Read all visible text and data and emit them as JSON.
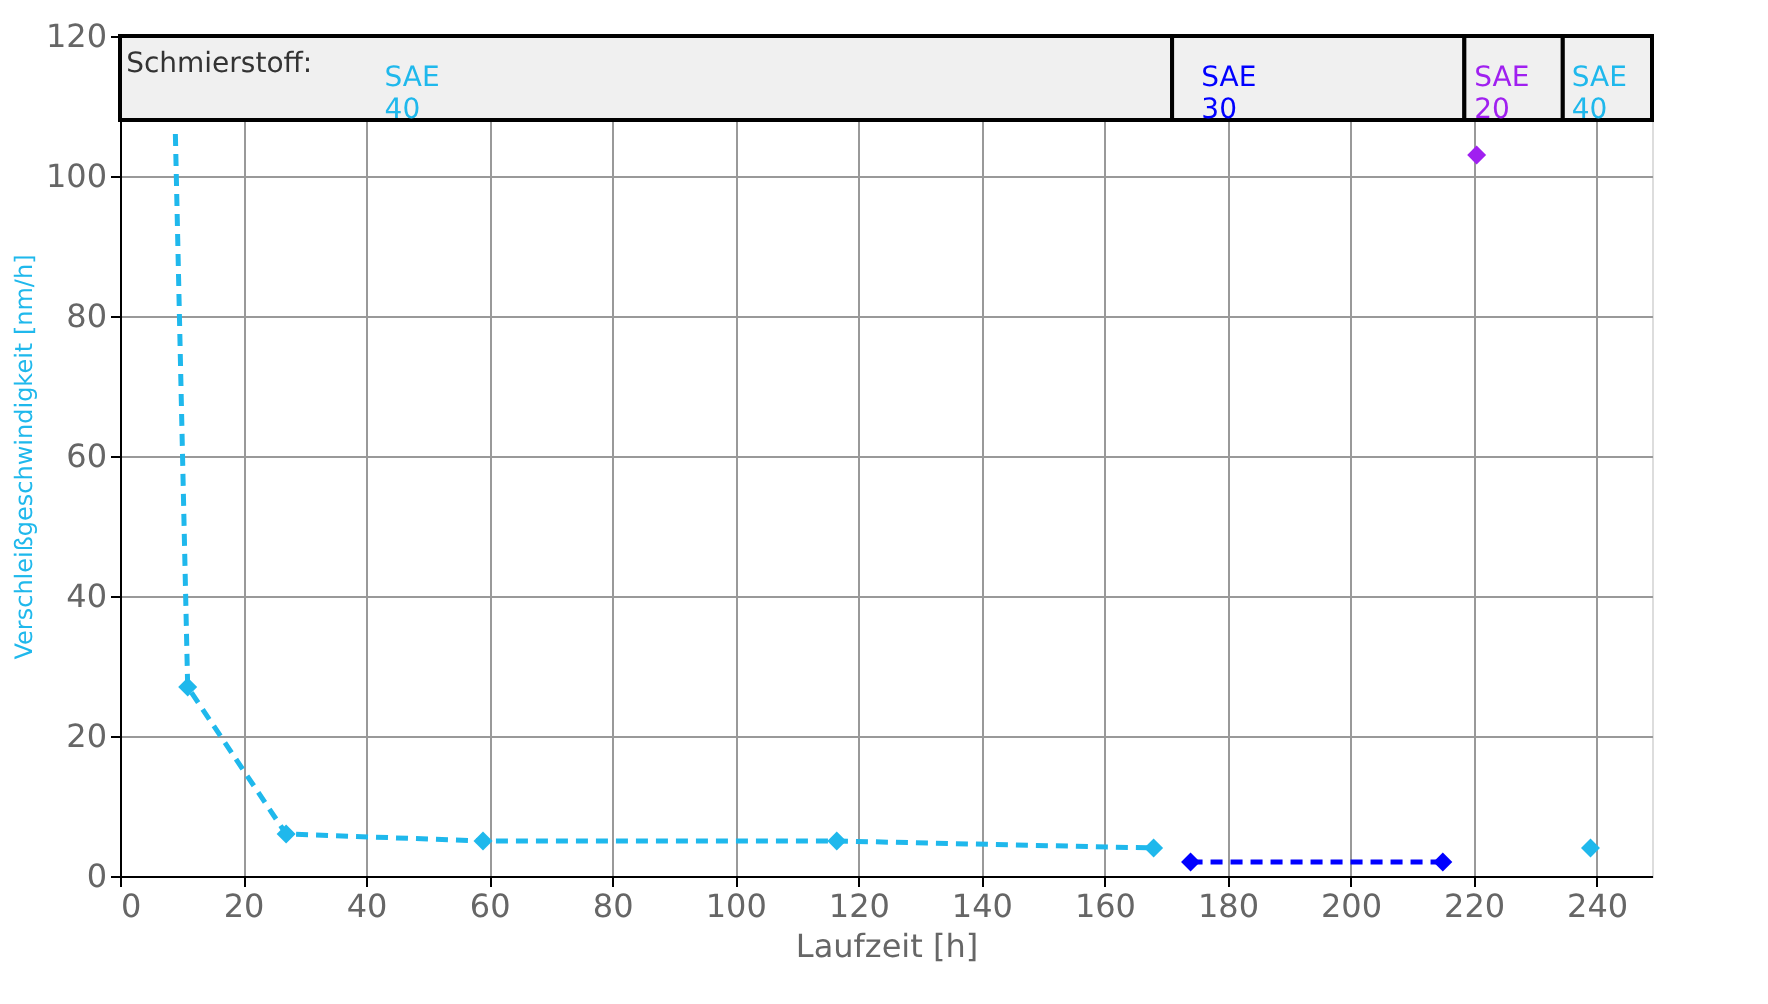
{
  "chart_data": {
    "type": "line",
    "xlabel": "Laufzeit [h]",
    "ylabel": "Verschleißgeschwindigkeit [nm/h]",
    "xlim": [
      0,
      249
    ],
    "ylim": [
      0,
      120
    ],
    "xticks": [
      0,
      20,
      40,
      60,
      80,
      100,
      120,
      140,
      160,
      180,
      200,
      220,
      240
    ],
    "yticks": [
      0,
      20,
      40,
      60,
      80,
      100,
      120
    ],
    "grid": true,
    "annotations": [
      {
        "text": "Schmierstoff:",
        "x": 1,
        "y": 114
      }
    ],
    "bands": [
      {
        "axis": "x",
        "from": 0,
        "to": 171,
        "label": "SAE 40"
      },
      {
        "axis": "x",
        "from": 171,
        "to": 218.5,
        "label": "SAE 30"
      },
      {
        "axis": "x",
        "from": 218.5,
        "to": 234.5,
        "label": "SAE 20"
      },
      {
        "axis": "x",
        "from": 234.5,
        "to": 249,
        "label": "SAE 40"
      }
    ],
    "series": [
      {
        "color": "#1fb8ec",
        "line_style": "dashed",
        "marker": "none",
        "x": [
          9,
          11,
          27,
          59,
          116.5,
          168
        ],
        "values": [
          106,
          27,
          6,
          5,
          5,
          4
        ]
      },
      {
        "type": "scatter",
        "color": "#1fb8ec",
        "marker": "diamond",
        "x": [
          11,
          27,
          59,
          116.5,
          168,
          239
        ],
        "values": [
          27,
          6,
          5,
          5,
          4,
          4
        ]
      },
      {
        "type": "line",
        "color": "#0000ff",
        "line_style": "dashed",
        "marker": "diamond",
        "x": [
          174,
          215
        ],
        "values": [
          2,
          2
        ]
      },
      {
        "type": "scatter",
        "color": "#a020f0",
        "marker": "diamond",
        "x": [
          220.5
        ],
        "values": [
          103
        ]
      }
    ]
  }
}
